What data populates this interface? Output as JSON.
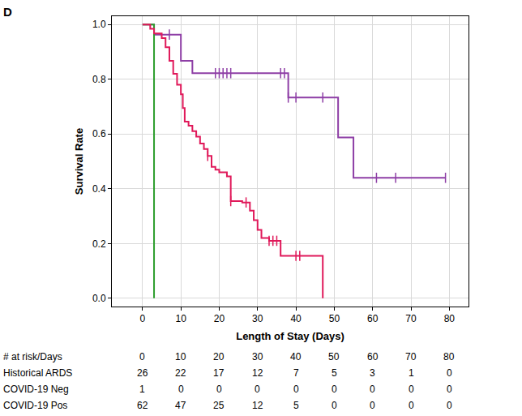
{
  "chart_data": {
    "type": "line",
    "panel_label": "D",
    "x_label": "Length of Stay (Days)",
    "y_label": "Survival Rate",
    "xlim": [
      -8,
      85
    ],
    "ylim": [
      -0.03,
      1.03
    ],
    "xticks": [
      0,
      10,
      20,
      30,
      40,
      50,
      60,
      70,
      80
    ],
    "yticks": [
      {
        "value": 0,
        "label": "0.0"
      },
      {
        "value": 0.2,
        "label": "0.2"
      },
      {
        "value": 0.4,
        "label": "0.4"
      },
      {
        "value": 0.6,
        "label": "0.6"
      },
      {
        "value": 0.8,
        "label": "0.8"
      },
      {
        "value": 1,
        "label": "1.0"
      }
    ],
    "grid": true,
    "line_style": "step",
    "marker": "vertical-tick",
    "series": [
      {
        "name": "Historical ARDS",
        "color": "#8e3fa6",
        "x": [
          0,
          3,
          10,
          13,
          38,
          51,
          55,
          79
        ],
        "values": [
          1.0,
          0.963,
          0.867,
          0.822,
          0.733,
          0.587,
          0.44,
          0.44
        ],
        "censored": {
          "x": [
            7,
            19,
            20,
            21,
            22,
            23,
            36,
            37,
            38,
            40,
            47,
            61,
            66,
            79
          ],
          "values": [
            0.963,
            0.822,
            0.822,
            0.822,
            0.822,
            0.822,
            0.822,
            0.822,
            0.733,
            0.733,
            0.733,
            0.44,
            0.44,
            0.44
          ]
        },
        "at_risk": [
          26,
          22,
          17,
          12,
          7,
          5,
          3,
          1,
          0
        ]
      },
      {
        "name": "COVID-19 Neg",
        "color": "#2e9e2e",
        "x": [
          0,
          3
        ],
        "values": [
          1.0,
          0.0
        ],
        "censored": {
          "x": [],
          "values": []
        },
        "at_risk": [
          1,
          0,
          0,
          0,
          0,
          0,
          0,
          0,
          0
        ]
      },
      {
        "name": "COVID-19 Pos",
        "color": "#e0195a",
        "x": [
          0,
          2,
          3,
          5,
          6,
          7,
          8,
          9,
          10,
          10.5,
          11,
          12,
          13,
          14,
          15,
          16,
          17,
          18,
          19,
          20,
          22,
          23,
          26,
          28,
          29,
          30,
          31,
          33,
          36,
          47
        ],
        "values": [
          1.0,
          0.984,
          0.967,
          0.95,
          0.917,
          0.867,
          0.82,
          0.78,
          0.745,
          0.695,
          0.645,
          0.63,
          0.61,
          0.59,
          0.565,
          0.545,
          0.52,
          0.48,
          0.47,
          0.46,
          0.445,
          0.355,
          0.35,
          0.32,
          0.285,
          0.25,
          0.22,
          0.21,
          0.155,
          0.0
        ],
        "censored": {
          "x": [
            17,
            23,
            27,
            33,
            34,
            35,
            40,
            41
          ],
          "values": [
            0.52,
            0.355,
            0.35,
            0.21,
            0.21,
            0.21,
            0.155,
            0.155
          ]
        },
        "at_risk": [
          62,
          47,
          25,
          12,
          5,
          0,
          0,
          0,
          0
        ]
      }
    ],
    "risk_table": {
      "header": "# at risk/Days",
      "days": [
        0,
        10,
        20,
        30,
        40,
        50,
        60,
        70,
        80
      ]
    }
  }
}
